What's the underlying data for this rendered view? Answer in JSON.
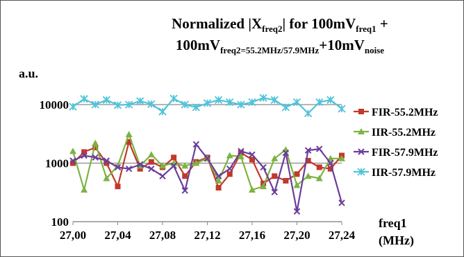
{
  "chart_data": {
    "type": "line",
    "title_parts": {
      "line1_prefix": "Normalized |X",
      "line1_sub1": "freq2",
      "line1_mid": "| for 100mV",
      "line1_sub2": "freq1",
      "line1_suffix": " +",
      "line2_prefix": "100mV",
      "line2_sub1": "freq2=55.2MHz/57.9MHz",
      "line2_mid": "+10mV",
      "line2_sub2": "noise"
    },
    "ylabel": "a.u.",
    "xlabel_line1": "freq1",
    "xlabel_line2": "(MHz)",
    "yscale": "log",
    "ylim": [
      100,
      30000
    ],
    "xlim": [
      27.0,
      27.24
    ],
    "yticks": [
      100,
      1000,
      10000
    ],
    "ytick_labels": [
      "100",
      "1000",
      "10000"
    ],
    "xticks": [
      27.0,
      27.04,
      27.08,
      27.12,
      27.16,
      27.2,
      27.24
    ],
    "xtick_labels": [
      "27,00",
      "27,04",
      "27,08",
      "27,12",
      "27,16",
      "27,20",
      "27,24"
    ],
    "grid": "horizontal",
    "legend_position": "right",
    "x": [
      27.0,
      27.01,
      27.02,
      27.03,
      27.04,
      27.05,
      27.06,
      27.07,
      27.08,
      27.09,
      27.1,
      27.11,
      27.12,
      27.13,
      27.14,
      27.15,
      27.16,
      27.17,
      27.18,
      27.19,
      27.2,
      27.21,
      27.22,
      27.23,
      27.24
    ],
    "series": [
      {
        "name": "FIR-55.2MHz",
        "color": "#c0392b",
        "marker": "square",
        "values": [
          1000,
          1550,
          1850,
          1000,
          400,
          2300,
          800,
          1050,
          850,
          1250,
          600,
          1050,
          1250,
          380,
          650,
          1500,
          1150,
          450,
          600,
          500,
          650,
          1100,
          850,
          800,
          1350
        ]
      },
      {
        "name": "IIR-55.2MHz",
        "color": "#7cb342",
        "marker": "triangle",
        "values": [
          1600,
          350,
          2200,
          550,
          900,
          3100,
          900,
          1400,
          900,
          1000,
          900,
          1000,
          1200,
          500,
          1350,
          1300,
          350,
          400,
          1200,
          1700,
          420,
          600,
          550,
          1200,
          1200
        ]
      },
      {
        "name": "FIR-57.9MHz",
        "color": "#6a3d9a",
        "marker": "x",
        "values": [
          1100,
          1350,
          1250,
          1100,
          850,
          800,
          950,
          800,
          600,
          900,
          340,
          2100,
          1200,
          600,
          800,
          1600,
          1400,
          850,
          320,
          1500,
          150,
          1650,
          1750,
          1000,
          210
        ]
      },
      {
        "name": "IIR-57.9MHz",
        "color": "#4fc3d9",
        "marker": "star",
        "values": [
          9200,
          12500,
          10000,
          12000,
          9800,
          10000,
          11500,
          10200,
          7600,
          12700,
          10000,
          9000,
          10600,
          12000,
          11000,
          10000,
          11000,
          13000,
          12000,
          9000,
          11000,
          7100,
          11000,
          12000,
          8500
        ]
      }
    ]
  }
}
